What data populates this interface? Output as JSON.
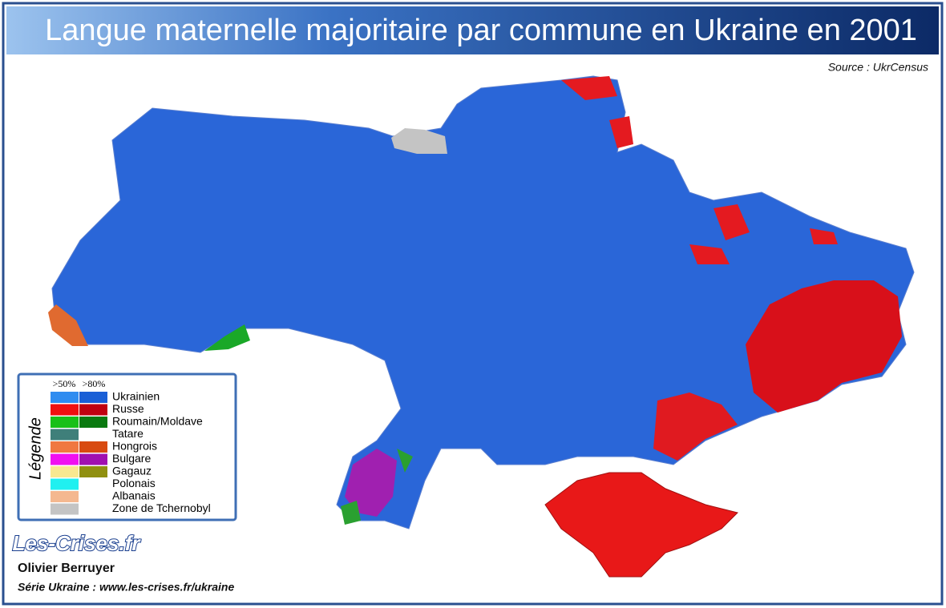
{
  "header": {
    "title": "Langue maternelle majoritaire par commune en Ukraine en 2001",
    "source": "Source : UkrCensus"
  },
  "legend": {
    "title": "Légende",
    "columns": [
      ">50%",
      ">80%"
    ],
    "items": [
      {
        "name": "Ukrainien",
        "colors": [
          "#2f8cf0",
          "#1a5fd6"
        ]
      },
      {
        "name": "Russe",
        "colors": [
          "#f01010",
          "#c00010"
        ]
      },
      {
        "name": "Roumain/Moldave",
        "colors": [
          "#18c018",
          "#0a7a10"
        ]
      },
      {
        "name": "Tatare",
        "colors": [
          "#3f7f7a"
        ]
      },
      {
        "name": "Hongrois",
        "colors": [
          "#f07840",
          "#d84a10"
        ]
      },
      {
        "name": "Bulgare",
        "colors": [
          "#f010f0",
          "#a010b0"
        ]
      },
      {
        "name": "Gagauz",
        "colors": [
          "#f8e890",
          "#909010"
        ]
      },
      {
        "name": "Polonais",
        "colors": [
          "#20f0f0"
        ]
      },
      {
        "name": "Albanais",
        "colors": [
          "#f4b890"
        ]
      },
      {
        "name": "Zone de Tchernobyl",
        "colors": [
          "#c4c4c4"
        ]
      }
    ]
  },
  "footer": {
    "logo": "Les-Crises.fr",
    "author": "Olivier Berruyer",
    "series": "Série Ukraine :  www.les-crises.fr/ukraine"
  }
}
